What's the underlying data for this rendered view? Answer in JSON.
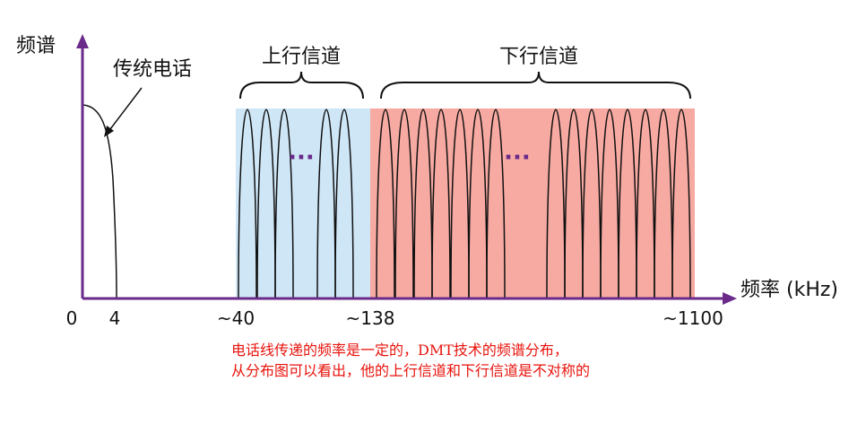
{
  "axes": {
    "y_label": "频谱",
    "x_label": "频率 (kHz)",
    "ticks": [
      "0",
      "4",
      "~40",
      "~138",
      "~1100"
    ]
  },
  "labels": {
    "phone": "传统电话",
    "upstream": "上行信道",
    "downstream": "下行信道"
  },
  "ellipses": [
    "···",
    "···"
  ],
  "caption": [
    "电话线传递的频率是一定的，DMT技术的频谱分布，",
    "从分布图可以看出，他的上行信道和下行信道是不对称的"
  ]
}
